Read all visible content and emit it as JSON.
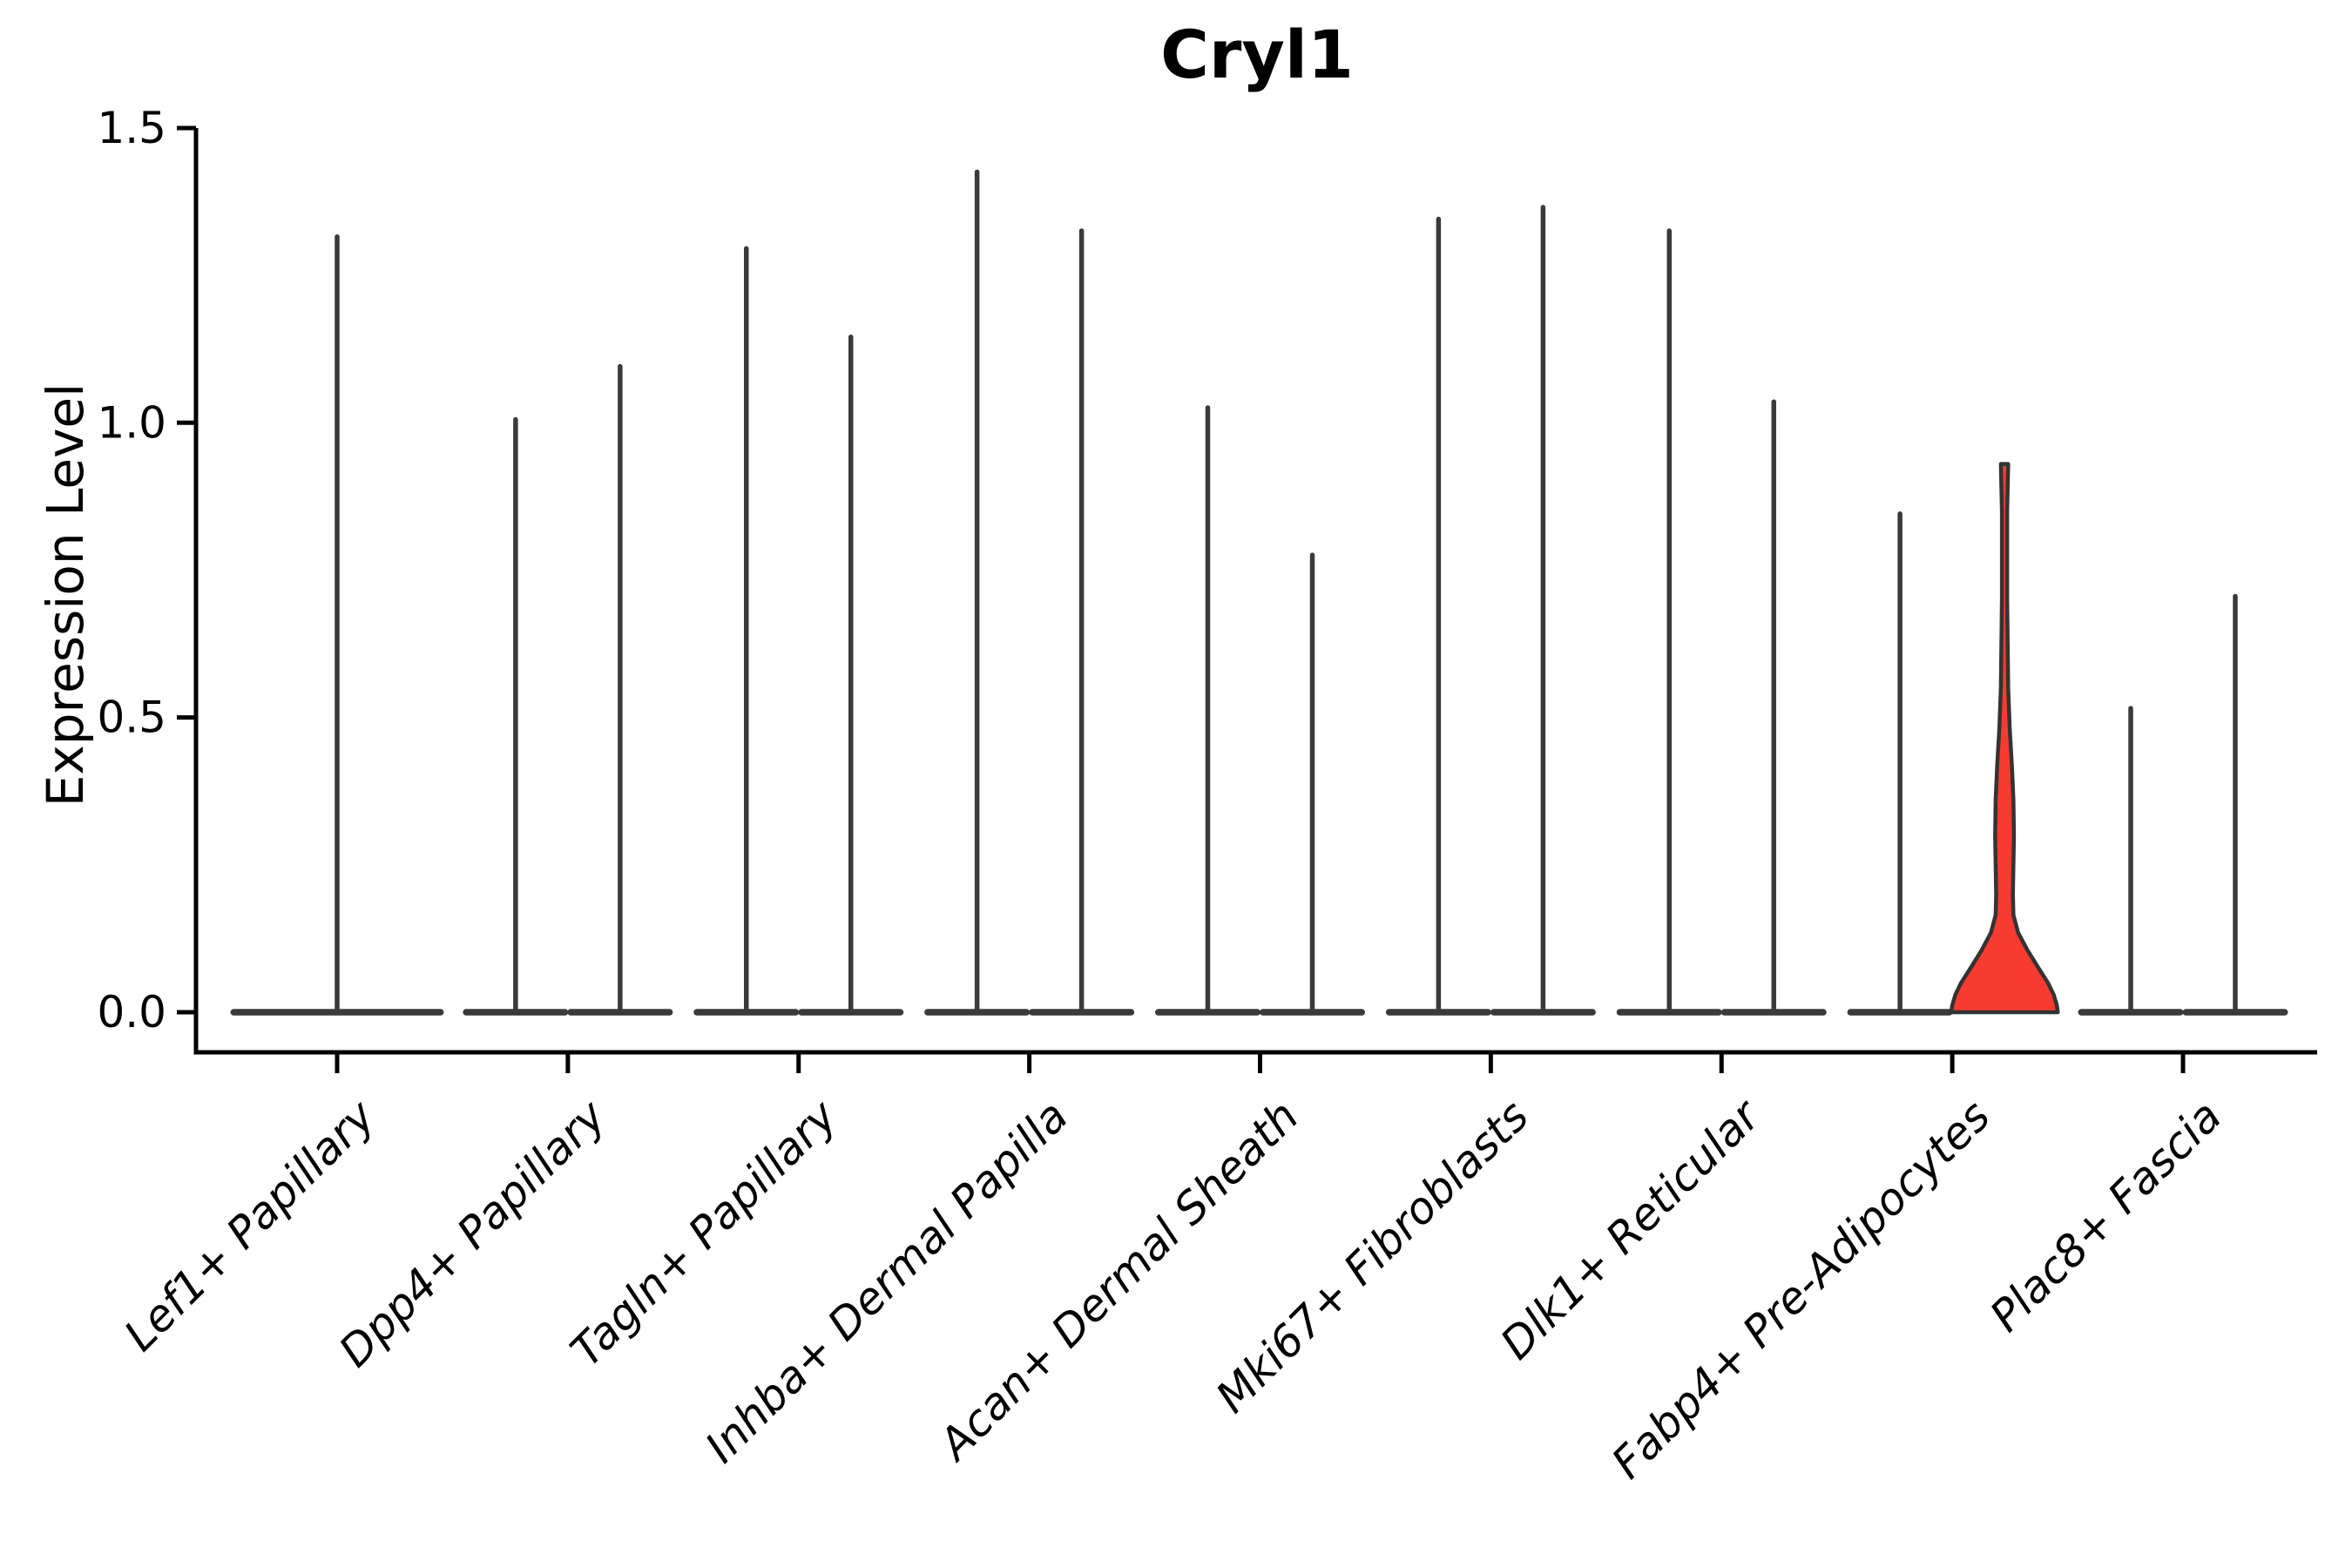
{
  "chart_data": {
    "type": "violin",
    "title": "Cryl1",
    "ylabel": "Expression Level",
    "xlabel": "",
    "ylim": [
      0,
      1.5
    ],
    "ytick_labels": [
      "0.0",
      "0.5",
      "1.0",
      "1.5"
    ],
    "legend": "none",
    "grid": false,
    "categories": [
      "Lef1+ Papillary",
      "Dpp4+ Papillary",
      "Tagln+ Papillary",
      "Inhba+ Dermal Papilla",
      "Acan+ Dermal Sheath",
      "Mki67+ Fibroblasts",
      "Dlk1+ Reticular",
      "Fabp4+ Pre-Adipocytes",
      "Plac8+ Fascia"
    ],
    "groups": [
      {
        "category": "Lef1+ Papillary",
        "violins": [
          {
            "pos": "center",
            "max_expression": 1.32,
            "shape": "spike"
          }
        ]
      },
      {
        "category": "Dpp4+ Papillary",
        "violins": [
          {
            "pos": "left",
            "max_expression": 1.01,
            "shape": "spike"
          },
          {
            "pos": "right",
            "max_expression": 1.1,
            "shape": "spike"
          }
        ]
      },
      {
        "category": "Tagln+ Papillary",
        "violins": [
          {
            "pos": "left",
            "max_expression": 1.3,
            "shape": "spike"
          },
          {
            "pos": "right",
            "max_expression": 1.15,
            "shape": "spike"
          }
        ]
      },
      {
        "category": "Inhba+ Dermal Papilla",
        "violins": [
          {
            "pos": "left",
            "max_expression": 1.43,
            "shape": "spike"
          },
          {
            "pos": "right",
            "max_expression": 1.33,
            "shape": "spike"
          }
        ]
      },
      {
        "category": "Acan+ Dermal Sheath",
        "violins": [
          {
            "pos": "left",
            "max_expression": 1.03,
            "shape": "spike"
          },
          {
            "pos": "right",
            "max_expression": 0.78,
            "shape": "spike"
          }
        ]
      },
      {
        "category": "Mki67+ Fibroblasts",
        "violins": [
          {
            "pos": "left",
            "max_expression": 1.35,
            "shape": "spike"
          },
          {
            "pos": "right",
            "max_expression": 1.37,
            "shape": "spike"
          }
        ]
      },
      {
        "category": "Dlk1+ Reticular",
        "violins": [
          {
            "pos": "left",
            "max_expression": 1.33,
            "shape": "spike"
          },
          {
            "pos": "right",
            "max_expression": 1.04,
            "shape": "spike"
          }
        ]
      },
      {
        "category": "Fabp4+ Pre-Adipocytes",
        "violins": [
          {
            "pos": "left",
            "max_expression": 0.85,
            "shape": "spike"
          },
          {
            "pos": "right",
            "max_expression": 0.93,
            "shape": "density",
            "highlighted": true,
            "fill": "#f83b30",
            "density_profile": [
              [
                0.93,
                0.07
              ],
              [
                0.85,
                0.05
              ],
              [
                0.7,
                0.05
              ],
              [
                0.55,
                0.07
              ],
              [
                0.48,
                0.1
              ],
              [
                0.42,
                0.14
              ],
              [
                0.36,
                0.17
              ],
              [
                0.3,
                0.18
              ],
              [
                0.25,
                0.17
              ],
              [
                0.2,
                0.16
              ],
              [
                0.165,
                0.17
              ],
              [
                0.135,
                0.26
              ],
              [
                0.105,
                0.44
              ],
              [
                0.075,
                0.65
              ],
              [
                0.05,
                0.83
              ],
              [
                0.03,
                0.94
              ],
              [
                0.012,
                1.0
              ],
              [
                0.0,
                1.02
              ]
            ]
          }
        ]
      },
      {
        "category": "Plac8+ Fascia",
        "violins": [
          {
            "pos": "left",
            "max_expression": 0.52,
            "shape": "spike"
          },
          {
            "pos": "right",
            "max_expression": 0.71,
            "shape": "spike"
          }
        ]
      }
    ],
    "colors": {
      "violin_spike": "#3a3a3a",
      "violin_outline": "#333333",
      "highlight_fill": "#f83b30",
      "axis": "#000000",
      "background": "#ffffff"
    }
  }
}
